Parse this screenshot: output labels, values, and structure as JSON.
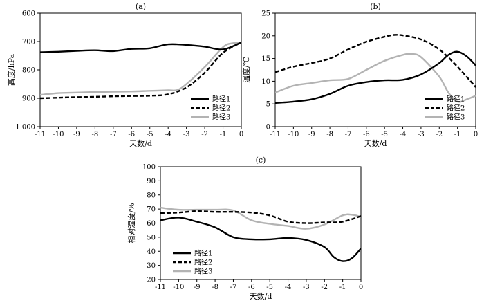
{
  "chart_data": [
    {
      "type": "line",
      "panel_label": "(a)",
      "xlabel": "天数/d",
      "ylabel": "高度/hPa",
      "x_ticks": [
        "-11",
        "-10",
        "-9",
        "-8",
        "-7",
        "-6",
        "-5",
        "-4",
        "-3",
        "-2",
        "-1",
        "0"
      ],
      "y_ticks": [
        "600",
        "700",
        "800",
        "900",
        "1 000"
      ],
      "xlim": [
        -11,
        0
      ],
      "ylim": [
        600,
        1000
      ],
      "y_inverted": true,
      "legend_position": "bottom-right",
      "series": [
        {
          "name": "路径1",
          "style": "solid",
          "color": "#000000",
          "x": [
            -11,
            -10,
            -9,
            -8,
            -7,
            -6,
            -5,
            -4,
            -3,
            -2,
            -1,
            0
          ],
          "y": [
            738,
            736,
            733,
            731,
            734,
            726,
            724,
            710,
            712,
            718,
            728,
            703
          ]
        },
        {
          "name": "路径2",
          "style": "dashed",
          "color": "#000000",
          "x": [
            -11,
            -10,
            -9,
            -8,
            -7,
            -6,
            -5,
            -4,
            -3,
            -2,
            -1,
            0
          ],
          "y": [
            900,
            898,
            896,
            895,
            893,
            892,
            891,
            886,
            862,
            810,
            740,
            703
          ]
        },
        {
          "name": "路径3",
          "style": "solid",
          "color": "#b3b3b3",
          "x": [
            -11,
            -10,
            -9,
            -8,
            -7,
            -6,
            -5,
            -4,
            -3.5,
            -3,
            -2,
            -1,
            -0.5,
            0
          ],
          "y": [
            888,
            882,
            880,
            878,
            877,
            876,
            874,
            872,
            871,
            850,
            790,
            720,
            706,
            706
          ]
        }
      ]
    },
    {
      "type": "line",
      "panel_label": "(b)",
      "xlabel": "天数/d",
      "ylabel": "温度/℃",
      "x_ticks": [
        "-11",
        "-10",
        "-9",
        "-8",
        "-7",
        "-6",
        "-5",
        "-4",
        "-3",
        "-2",
        "-1",
        "0"
      ],
      "y_ticks": [
        "0",
        "5",
        "10",
        "15",
        "20",
        "25"
      ],
      "xlim": [
        -11,
        0
      ],
      "ylim": [
        0,
        25
      ],
      "legend_position": "bottom-right",
      "series": [
        {
          "name": "路径1",
          "style": "solid",
          "color": "#000000",
          "x": [
            -11,
            -10,
            -9,
            -8,
            -7,
            -6,
            -5,
            -4,
            -3,
            -2,
            -1.5,
            -1,
            -0.5,
            0
          ],
          "y": [
            5.2,
            5.5,
            6.0,
            7.2,
            9.0,
            9.8,
            10.2,
            10.3,
            11.5,
            14.0,
            15.8,
            16.5,
            15.5,
            13.5
          ]
        },
        {
          "name": "路径2",
          "style": "dashed",
          "color": "#000000",
          "x": [
            -11,
            -10,
            -9,
            -8,
            -7,
            -6,
            -5,
            -4.5,
            -4,
            -3,
            -2,
            -1,
            0
          ],
          "y": [
            12,
            13.2,
            14,
            15,
            17,
            18.7,
            19.8,
            20.2,
            20.1,
            19.2,
            17,
            13.2,
            8.7
          ]
        },
        {
          "name": "路径3",
          "style": "solid",
          "color": "#b3b3b3",
          "x": [
            -11,
            -10,
            -9,
            -8,
            -7,
            -6,
            -5,
            -4,
            -3.5,
            -3,
            -2,
            -1.5,
            -1,
            -0.5,
            0
          ],
          "y": [
            7.5,
            9,
            9.6,
            10.2,
            10.5,
            12.5,
            14.5,
            15.8,
            16,
            15.3,
            11,
            7.5,
            5.5,
            6,
            6.8
          ]
        }
      ]
    },
    {
      "type": "line",
      "panel_label": "(c)",
      "xlabel": "天数/d",
      "ylabel": "相对湿度/%",
      "x_ticks": [
        "-11",
        "-10",
        "-9",
        "-8",
        "-7",
        "-6",
        "-5",
        "-4",
        "-3",
        "-2",
        "-1",
        "0"
      ],
      "y_ticks": [
        "20",
        "30",
        "40",
        "50",
        "60",
        "70",
        "80",
        "90",
        "100"
      ],
      "xlim": [
        -11,
        0
      ],
      "ylim": [
        20,
        100
      ],
      "legend_position": "bottom-left",
      "series": [
        {
          "name": "路径1",
          "style": "solid",
          "color": "#000000",
          "x": [
            -11,
            -10,
            -9,
            -8,
            -7,
            -6,
            -5,
            -4,
            -3,
            -2,
            -1.5,
            -1,
            -0.5,
            0
          ],
          "y": [
            62,
            64,
            61,
            57,
            50,
            48.5,
            48.5,
            49.5,
            48,
            43,
            36,
            33,
            35,
            42
          ]
        },
        {
          "name": "路径2",
          "style": "dashed",
          "color": "#000000",
          "x": [
            -11,
            -10,
            -9,
            -8,
            -7,
            -6,
            -5,
            -4,
            -3,
            -2,
            -1,
            0
          ],
          "y": [
            67,
            67.5,
            68.5,
            68,
            68,
            67.5,
            65.5,
            61,
            60,
            60.5,
            61,
            65
          ]
        },
        {
          "name": "路径3",
          "style": "solid",
          "color": "#b3b3b3",
          "x": [
            -11,
            -10,
            -9,
            -8,
            -7,
            -6,
            -5,
            -4,
            -3,
            -2,
            -1,
            -0.5,
            0
          ],
          "y": [
            71,
            69.5,
            69.5,
            69.5,
            69,
            62,
            59.5,
            58,
            56,
            59,
            65.5,
            66,
            64.5
          ]
        }
      ]
    }
  ]
}
